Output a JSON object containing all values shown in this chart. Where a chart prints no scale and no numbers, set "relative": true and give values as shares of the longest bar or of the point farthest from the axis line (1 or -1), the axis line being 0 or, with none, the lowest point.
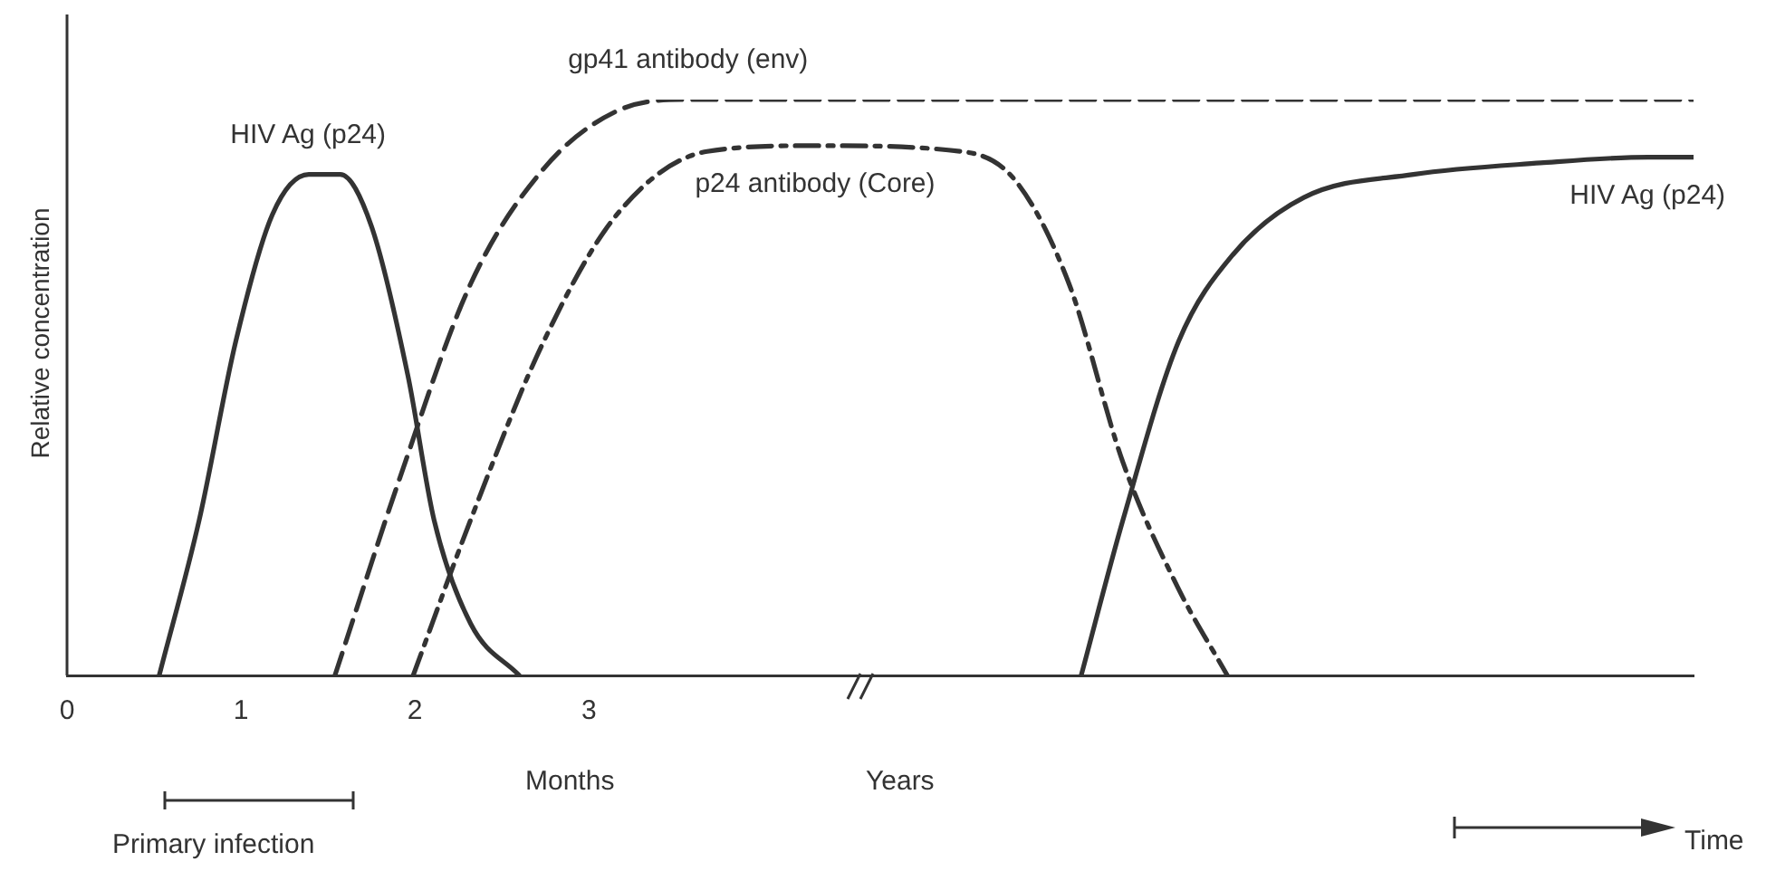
{
  "chart_data": {
    "type": "line",
    "relative": true,
    "ylabel": "Relative concentration",
    "xlim": [
      0,
      9.35
    ],
    "xticks": [
      0,
      1,
      2,
      3
    ],
    "grid": false,
    "legend": false,
    "marker": "none",
    "series": [
      {
        "name": "HIV Ag (p24)",
        "color": "#333333",
        "line_style": "solid",
        "x": [
          0.53,
          0.76,
          0.97,
          1.18,
          1.39,
          1.57,
          1.75,
          1.96,
          2.11,
          2.32,
          2.6
        ],
        "values": [
          0,
          0.27,
          0.58,
          0.8,
          0.87,
          0.87,
          0.78,
          0.52,
          0.27,
          0.09,
          0
        ]
      },
      {
        "name": "gp41 antibody (env)",
        "color": "#333333",
        "line_style": "dashed",
        "x": [
          1.54,
          1.91,
          2.32,
          2.74,
          3.16,
          3.57,
          9.35
        ],
        "values": [
          0,
          0.34,
          0.68,
          0.88,
          0.98,
          1,
          1
        ]
      },
      {
        "name": "p24 antibody (Core)",
        "color": "#333333",
        "line_style": "dashdot",
        "x": [
          1.99,
          2.32,
          2.74,
          3.16,
          3.68,
          4.3,
          5.14,
          5.45,
          5.76,
          6.07,
          6.39,
          6.67
        ],
        "values": [
          0,
          0.27,
          0.58,
          0.8,
          0.91,
          0.92,
          0.91,
          0.86,
          0.68,
          0.37,
          0.15,
          0
        ]
      },
      {
        "name": "HIV Ag (p24)",
        "color": "#333333",
        "line_style": "solid",
        "x": [
          5.83,
          6.07,
          6.39,
          6.7,
          7.11,
          7.74,
          8.47,
          9.09,
          9.35
        ],
        "values": [
          0,
          0.27,
          0.58,
          0.73,
          0.83,
          0.87,
          0.89,
          0.9,
          0.9
        ]
      }
    ],
    "annotations": [
      "Months",
      "Years",
      "Primary infection",
      "Time"
    ]
  }
}
